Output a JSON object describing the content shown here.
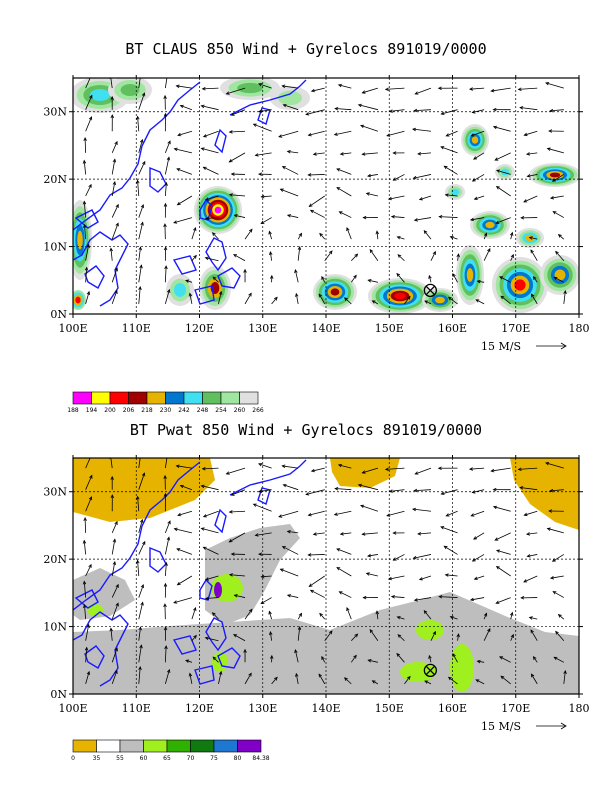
{
  "panel1": {
    "title": "BT CLAUS 850 Wind + Gyrelocs 891019/0000",
    "scale_label": "15 M/S",
    "legend_labels": [
      "188",
      "194",
      "200",
      "206",
      "218",
      "230",
      "242",
      "248",
      "254",
      "260",
      "266"
    ],
    "legend_colors": [
      "#ff00ff",
      "#ffff00",
      "#ff0000",
      "#a00000",
      "#e6b400",
      "#0078d0",
      "#40e0f0",
      "#60c060",
      "#a0e6a0",
      "#e0e0e0"
    ]
  },
  "panel2": {
    "title": "BT Pwat 850 Wind + Gyrelocs 891019/0000",
    "scale_label": "15 M/S",
    "legend_labels": [
      "0",
      "35",
      "55",
      "60",
      "65",
      "70",
      "75",
      "80",
      "84.38"
    ],
    "legend_colors": [
      "#e6b400",
      "#ffffff",
      "#bebebe",
      "#a0f020",
      "#30b000",
      "#107a10",
      "#1e78d2",
      "#8000c8"
    ]
  },
  "axes": {
    "x_ticks": [
      "100E",
      "110E",
      "120E",
      "130E",
      "140E",
      "150E",
      "160E",
      "170E",
      "180"
    ],
    "y_ticks": [
      "0N",
      "10N",
      "20N",
      "30N"
    ]
  }
}
